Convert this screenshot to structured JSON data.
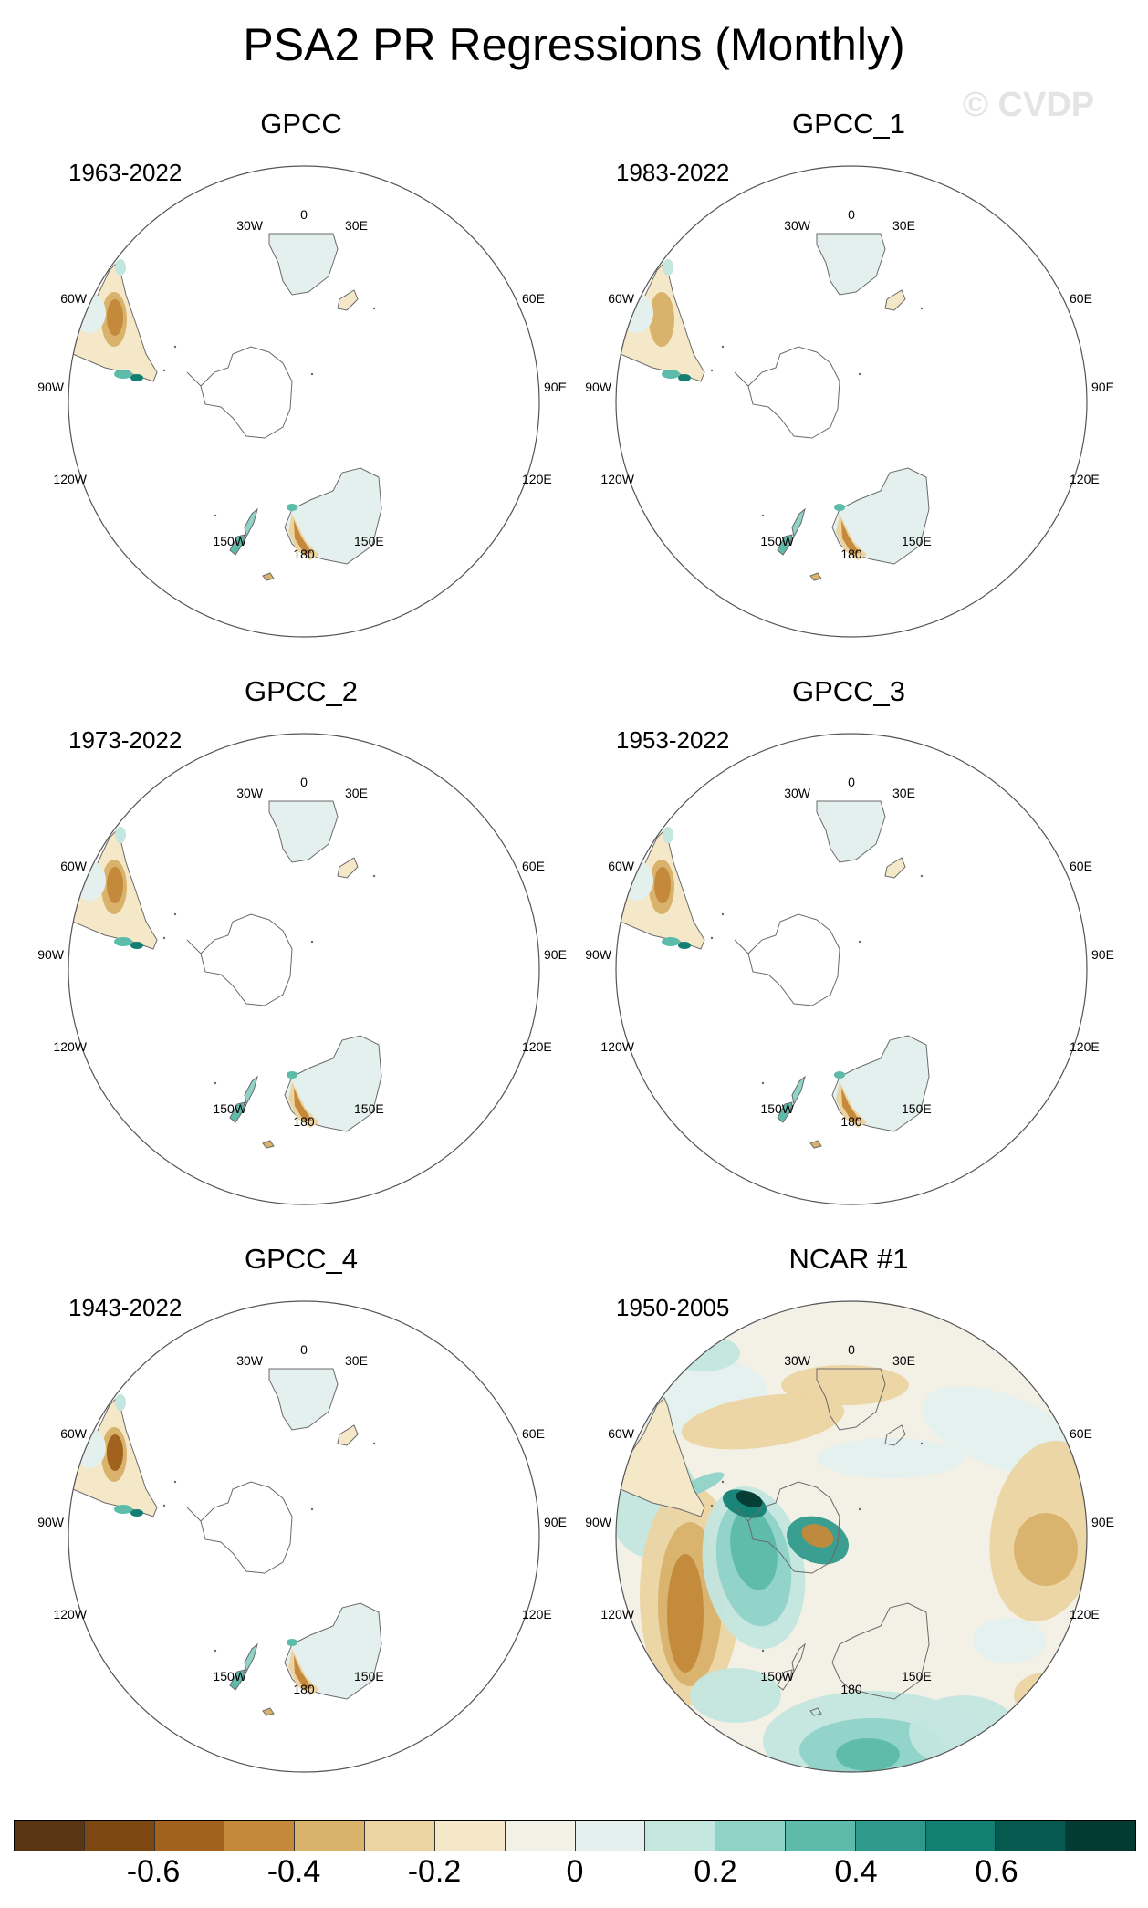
{
  "title": "PSA2 PR Regressions (Monthly)",
  "watermark": "© CVDP",
  "map_labels": {
    "top": "0",
    "bottom": "180",
    "lon_30w": "30W",
    "lon_30e": "30E",
    "lon_60w": "60W",
    "lon_60e": "60E",
    "lon_90w": "90W",
    "lon_90e": "90E",
    "lon_120w": "120W",
    "lon_120e": "120E",
    "lon_150w": "150W",
    "lon_150e": "150E"
  },
  "panels": [
    {
      "title": "GPCC",
      "years": "1963-2022",
      "type": "obs",
      "variant": 0
    },
    {
      "title": "GPCC_1",
      "years": "1983-2022",
      "type": "obs",
      "variant": 1
    },
    {
      "title": "GPCC_2",
      "years": "1973-2022",
      "type": "obs",
      "variant": 2
    },
    {
      "title": "GPCC_3",
      "years": "1953-2022",
      "type": "obs",
      "variant": 3
    },
    {
      "title": "GPCC_4",
      "years": "1943-2022",
      "type": "obs",
      "variant": 4
    },
    {
      "title": "NCAR #1",
      "years": "1950-2005",
      "type": "model",
      "variant": 5
    }
  ],
  "colorbar": {
    "colors": [
      "#593513",
      "#7c4710",
      "#a0621c",
      "#c4893a",
      "#d9b26c",
      "#ecd4a2",
      "#f4e8c8",
      "#f3f0e6",
      "#e4f0ee",
      "#c3e6df",
      "#8fd3c7",
      "#5dbbaa",
      "#2f9a8b",
      "#137f73",
      "#06594e",
      "#033a31"
    ],
    "labels": [
      "-0.6",
      "-0.4",
      "-0.2",
      "0",
      "0.2",
      "0.4",
      "0.6"
    ]
  },
  "colors": {
    "land_outline": "#6a6a6a",
    "frame": "#555555"
  }
}
